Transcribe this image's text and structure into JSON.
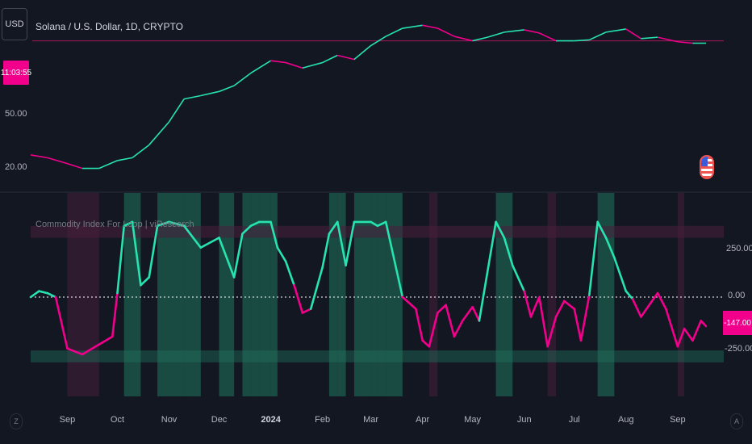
{
  "header": {
    "currency_label": "USD",
    "symbol_title": "Solana / U.S. Dollar, 1D, CRYPTO",
    "countdown": "11:03:55"
  },
  "price_axis": {
    "labels": [
      "50.00",
      "20.00"
    ]
  },
  "indicator": {
    "title": "Commodity Index For Loop | viResearch",
    "axis_labels": [
      "250.00",
      "0.00",
      "-250.00"
    ],
    "current_value": "-147.00"
  },
  "time_axis": {
    "months": [
      {
        "label": "Sep"
      },
      {
        "label": "Oct"
      },
      {
        "label": "Nov"
      },
      {
        "label": "Dec"
      },
      {
        "label": "2024",
        "bold": true
      },
      {
        "label": "Feb"
      },
      {
        "label": "Mar"
      },
      {
        "label": "Apr"
      },
      {
        "label": "May"
      },
      {
        "label": "Jun"
      },
      {
        "label": "Jul"
      },
      {
        "label": "Aug"
      },
      {
        "label": "Sep"
      }
    ],
    "left_button": "Z",
    "right_button": "A"
  },
  "colors": {
    "bull": "#26e3b0",
    "bear": "#f2008c",
    "background": "#131722",
    "bull_zone": "#1f6e5a",
    "bear_zone": "#4a1f3c"
  },
  "chart_data": [
    {
      "type": "line",
      "title": "Solana / U.S. Dollar, 1D, CRYPTO",
      "x": [
        "2023-08-10",
        "2023-08-20",
        "2023-09-01",
        "2023-09-10",
        "2023-09-20",
        "2023-10-01",
        "2023-10-10",
        "2023-10-20",
        "2023-11-01",
        "2023-11-10",
        "2023-11-20",
        "2023-12-01",
        "2023-12-10",
        "2023-12-20",
        "2024-01-01",
        "2024-01-10",
        "2024-01-20",
        "2024-02-01",
        "2024-02-10",
        "2024-02-20",
        "2024-03-01",
        "2024-03-10",
        "2024-03-20",
        "2024-04-01",
        "2024-04-10",
        "2024-04-20",
        "2024-05-01",
        "2024-05-10",
        "2024-05-20",
        "2024-06-01",
        "2024-06-10",
        "2024-06-20",
        "2024-07-01",
        "2024-07-10",
        "2024-07-20",
        "2024-08-01",
        "2024-08-10",
        "2024-08-20",
        "2024-09-01",
        "2024-09-10",
        "2024-09-18"
      ],
      "values": [
        24,
        23,
        21,
        19.5,
        19.5,
        22,
        23,
        28,
        40,
        57,
        60,
        64,
        70,
        85,
        103,
        100,
        92,
        100,
        112,
        105,
        130,
        150,
        170,
        178,
        170,
        150,
        140,
        148,
        160,
        166,
        158,
        140,
        140,
        142,
        160,
        168,
        145,
        148,
        138,
        135,
        135
      ],
      "reference_line": 140,
      "ylabels": [
        "50.00",
        "20.00"
      ]
    },
    {
      "type": "line",
      "title": "Commodity Index For Loop | viResearch",
      "x": [
        "2023-08-10",
        "2023-08-15",
        "2023-08-20",
        "2023-08-25",
        "2023-09-01",
        "2023-09-10",
        "2023-09-20",
        "2023-09-28",
        "2023-10-01",
        "2023-10-05",
        "2023-10-10",
        "2023-10-15",
        "2023-10-20",
        "2023-10-25",
        "2023-11-01",
        "2023-11-10",
        "2023-11-20",
        "2023-12-01",
        "2023-12-10",
        "2023-12-15",
        "2023-12-20",
        "2023-12-25",
        "2024-01-01",
        "2024-01-05",
        "2024-01-10",
        "2024-01-15",
        "2024-01-20",
        "2024-01-25",
        "2024-02-01",
        "2024-02-05",
        "2024-02-10",
        "2024-02-15",
        "2024-02-20",
        "2024-03-01",
        "2024-03-05",
        "2024-03-10",
        "2024-03-20",
        "2024-03-28",
        "2024-04-01",
        "2024-04-05",
        "2024-04-10",
        "2024-04-15",
        "2024-04-20",
        "2024-04-25",
        "2024-05-01",
        "2024-05-05",
        "2024-05-10",
        "2024-05-15",
        "2024-05-20",
        "2024-05-25",
        "2024-06-01",
        "2024-06-05",
        "2024-06-10",
        "2024-06-15",
        "2024-06-20",
        "2024-06-25",
        "2024-07-01",
        "2024-07-05",
        "2024-07-10",
        "2024-07-15",
        "2024-07-20",
        "2024-07-25",
        "2024-08-01",
        "2024-08-05",
        "2024-08-10",
        "2024-08-15",
        "2024-08-20",
        "2024-08-25",
        "2024-09-01",
        "2024-09-05",
        "2024-09-10",
        "2024-09-15",
        "2024-09-18"
      ],
      "values": [
        0,
        30,
        20,
        0,
        -260,
        -290,
        -240,
        -200,
        20,
        360,
        380,
        60,
        100,
        360,
        380,
        360,
        250,
        300,
        100,
        320,
        360,
        380,
        380,
        250,
        180,
        60,
        -80,
        -60,
        150,
        320,
        380,
        160,
        380,
        380,
        360,
        380,
        0,
        -60,
        -220,
        -250,
        -80,
        -40,
        -200,
        -120,
        -50,
        -120,
        130,
        380,
        300,
        160,
        30,
        -100,
        0,
        -250,
        -100,
        -20,
        -60,
        -220,
        10,
        380,
        300,
        200,
        30,
        -10,
        -100,
        -40,
        20,
        -60,
        -250,
        -160,
        -220,
        -120,
        -147
      ],
      "ylabels": [
        "250.00",
        "0.00",
        "-250.00"
      ],
      "zero_line": 0,
      "upper_band": [
        300,
        360
      ],
      "lower_band": [
        -330,
        -270
      ],
      "current_value": -147
    }
  ]
}
